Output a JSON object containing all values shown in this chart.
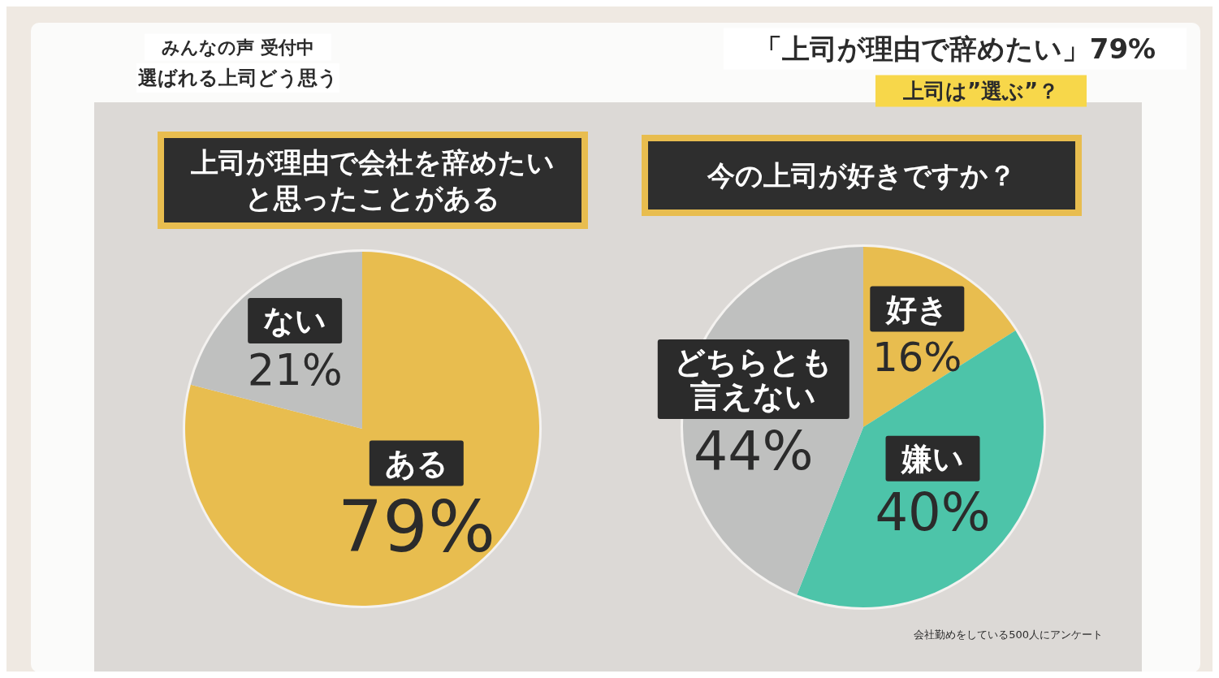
{
  "chart_data": [
    {
      "type": "pie",
      "title": "上司が理由で会社を辞めたいと思ったことがある",
      "categories": [
        "ある",
        "ない"
      ],
      "values": [
        79,
        21
      ],
      "colors": [
        "#e8bd4f",
        "#bfc0bf"
      ],
      "value_labels": [
        "79%",
        "21%"
      ],
      "annotations": [
        "みんなの声 受付中",
        "選ばれる上司どう思う"
      ]
    },
    {
      "type": "pie",
      "title": "今の上司が好きですか？",
      "categories": [
        "好き",
        "嫌い",
        "どちらとも言えない"
      ],
      "values": [
        16,
        40,
        44
      ],
      "colors": [
        "#e8bd4f",
        "#4dc4a9",
        "#bfc0bf"
      ],
      "value_labels": [
        "16%",
        "40%",
        "44%"
      ],
      "annotations": [
        "「上司が理由で辞めたい」79%",
        "上司は”選ぶ”？",
        "会社勤めをしている500人にアンケート"
      ]
    }
  ]
}
